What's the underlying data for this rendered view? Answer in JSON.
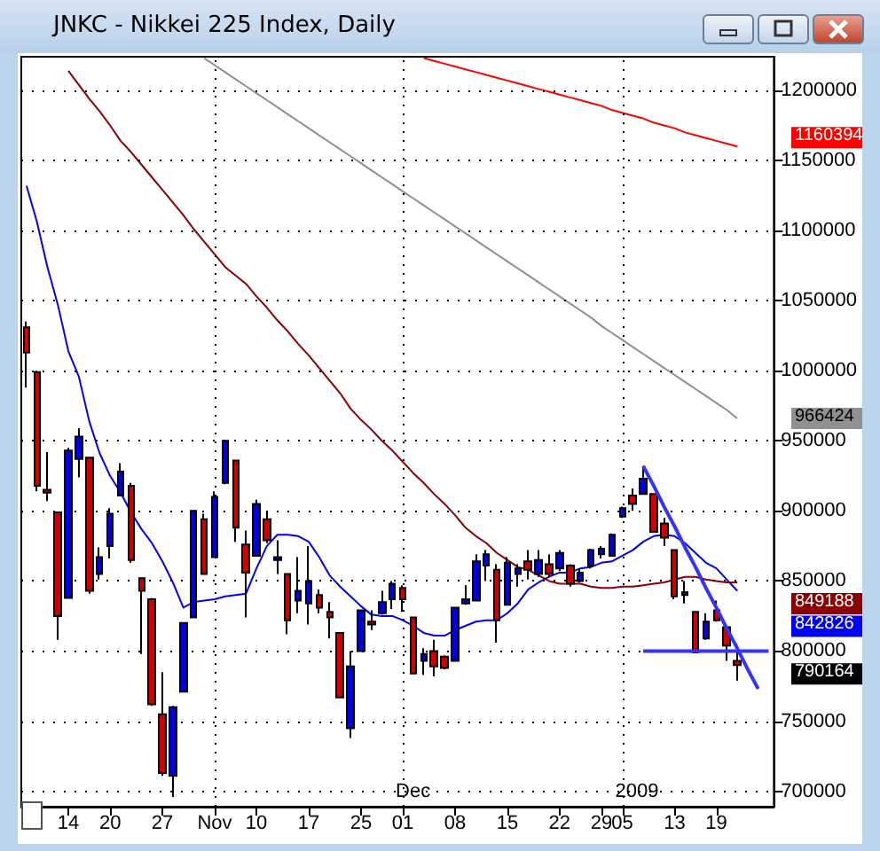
{
  "chart_data": {
    "type": "candlestick",
    "title": "JNKC - Nikkei 225 Index, Daily",
    "categories": [
      null,
      null,
      null,
      null,
      "14",
      null,
      null,
      null,
      "20",
      null,
      null,
      null,
      null,
      "27",
      null,
      null,
      null,
      null,
      "Nov",
      null,
      null,
      null,
      "10",
      null,
      null,
      null,
      null,
      "17",
      null,
      null,
      null,
      null,
      "25",
      null,
      null,
      null,
      "01",
      null,
      null,
      null,
      null,
      "08",
      null,
      null,
      null,
      null,
      "15",
      null,
      null,
      null,
      null,
      "22",
      null,
      null,
      null,
      "29",
      null,
      "05",
      null,
      null,
      null,
      null,
      "13",
      null,
      null,
      null,
      "19",
      null,
      null,
      null,
      null,
      null
    ],
    "ohlc": [
      [
        1031000,
        1035000,
        988000,
        1013000
      ],
      [
        999000,
        1000000,
        914000,
        918000
      ],
      [
        915000,
        942000,
        907000,
        913000
      ],
      [
        899000,
        899000,
        808000,
        825000
      ],
      [
        838000,
        945000,
        838000,
        943000
      ],
      [
        937000,
        959000,
        924000,
        953000
      ],
      [
        938000,
        938000,
        841000,
        843000
      ],
      [
        855000,
        874000,
        851000,
        867000
      ],
      [
        875000,
        902000,
        866000,
        898000
      ],
      [
        911000,
        934000,
        911000,
        928000
      ],
      [
        918000,
        920000,
        863000,
        865000
      ],
      [
        852000,
        852000,
        798000,
        843000
      ],
      [
        837000,
        838000,
        761000,
        762000
      ],
      [
        755000,
        785000,
        711000,
        713000
      ],
      [
        711000,
        761000,
        696000,
        760000
      ],
      [
        771000,
        820000,
        771000,
        820000
      ],
      [
        824000,
        900000,
        824000,
        900000
      ],
      [
        894000,
        898000,
        855000,
        855000
      ],
      [
        867000,
        914000,
        867000,
        910000
      ],
      [
        920000,
        950000,
        919000,
        950000
      ],
      [
        936000,
        936000,
        878000,
        888000
      ],
      [
        876000,
        886000,
        824000,
        856000
      ],
      [
        868000,
        908000,
        868000,
        905000
      ],
      [
        894000,
        900000,
        877000,
        879000
      ],
      [
        865000,
        879000,
        855000,
        867000
      ],
      [
        855000,
        855000,
        812000,
        822000
      ],
      [
        836000,
        867000,
        827000,
        843000
      ],
      [
        834000,
        875000,
        819000,
        850000
      ],
      [
        840000,
        844000,
        827000,
        831000
      ],
      [
        828000,
        835000,
        809000,
        824000
      ],
      [
        813000,
        813000,
        767000,
        767000
      ],
      [
        745000,
        800000,
        738000,
        789000
      ],
      [
        800000,
        829000,
        800000,
        829000
      ],
      [
        821000,
        829000,
        815000,
        819000
      ],
      [
        827000,
        843000,
        826000,
        835000
      ],
      [
        837000,
        850000,
        830000,
        848000
      ],
      [
        845000,
        847000,
        828000,
        837000
      ],
      [
        824000,
        824000,
        784000,
        784000
      ],
      [
        793000,
        802000,
        783000,
        798000
      ],
      [
        800000,
        808000,
        782000,
        789000
      ],
      [
        796000,
        797000,
        787000,
        788000
      ],
      [
        793000,
        831000,
        793000,
        831000
      ],
      [
        834000,
        847000,
        833000,
        837000
      ],
      [
        836000,
        869000,
        836000,
        864000
      ],
      [
        861000,
        872000,
        850000,
        869000
      ],
      [
        858000,
        862000,
        806000,
        822000
      ],
      [
        833000,
        867000,
        833000,
        863000
      ],
      [
        855000,
        862000,
        846000,
        859000
      ],
      [
        864000,
        872000,
        851000,
        858000
      ],
      [
        855000,
        872000,
        853000,
        865000
      ],
      [
        862000,
        869000,
        853000,
        855000
      ],
      [
        859000,
        872000,
        857000,
        870000
      ],
      [
        861000,
        862000,
        846000,
        848000
      ],
      [
        850000,
        859000,
        849000,
        856000
      ],
      [
        861000,
        873000,
        859000,
        872000
      ],
      [
        869000,
        875000,
        866000,
        873000
      ],
      [
        868000,
        884000,
        868000,
        883000
      ],
      [
        896000,
        903000,
        895000,
        902000
      ],
      [
        911000,
        916000,
        900000,
        905000
      ],
      [
        912000,
        932000,
        912000,
        923000
      ],
      [
        912000,
        912000,
        885000,
        885000
      ],
      [
        891000,
        895000,
        875000,
        881000
      ],
      [
        872000,
        872000,
        837000,
        839000
      ],
      [
        840000,
        850000,
        834000,
        842000
      ],
      [
        828000,
        828000,
        799000,
        799000
      ],
      [
        809000,
        827000,
        808000,
        821000
      ],
      [
        829000,
        836000,
        821000,
        822000
      ],
      [
        817000,
        817000,
        793000,
        804000
      ],
      [
        793000,
        799000,
        779000,
        790000
      ],
      null,
      null,
      null
    ],
    "colors": [
      "#d00000",
      "#d00000",
      "#d00000",
      "#d00000",
      "#0000e0",
      "#0000e0",
      "#d00000",
      "#0000e0",
      "#0000e0",
      "#0000e0",
      "#d00000",
      "#d00000",
      "#d00000",
      "#d00000",
      "#0000e0",
      "#0000e0",
      "#0000e0",
      "#d00000",
      "#0000e0",
      "#0000e0",
      "#d00000",
      "#d00000",
      "#0000e0",
      "#d00000",
      "#0000e0",
      "#d00000",
      "#0000e0",
      "#0000e0",
      "#d00000",
      "#d00000",
      "#d00000",
      "#0000e0",
      "#0000e0",
      "#d00000",
      "#0000e0",
      "#0000e0",
      "#d00000",
      "#d00000",
      "#0000e0",
      "#d00000",
      "#d00000",
      "#0000e0",
      "#0000e0",
      "#0000e0",
      "#0000e0",
      "#d00000",
      "#0000e0",
      "#0000e0",
      "#d00000",
      "#0000e0",
      "#d00000",
      "#0000e0",
      "#d00000",
      "#0000e0",
      "#0000e0",
      "#0000e0",
      "#0000e0",
      "#0000e0",
      "#d00000",
      "#0000e0",
      "#d00000",
      "#d00000",
      "#d00000",
      "#0000e0",
      "#d00000",
      "#0000e0",
      "#d00000",
      "#d00000",
      "#d00000",
      null,
      null,
      null
    ],
    "series": [
      {
        "type": "line",
        "color": "#0000ff",
        "values": [
          1132000,
          1106000,
          1074000,
          1047000,
          1014000,
          996000,
          964000,
          941000,
          925000,
          913000,
          899000,
          887000,
          877000,
          864000,
          849000,
          831000,
          835000,
          836000,
          837000,
          839000,
          840000,
          841000,
          859000,
          875000,
          883000,
          883000,
          882000,
          878000,
          867000,
          854000,
          846000,
          839000,
          832000,
          826000,
          825000,
          825000,
          822000,
          818000,
          813000,
          811000,
          811000,
          815000,
          818000,
          821000,
          822000,
          822000,
          827000,
          834000,
          844000,
          849000,
          853000,
          856000,
          856000,
          859000,
          860000,
          863000,
          864000,
          868000,
          872000,
          878000,
          882000,
          883000,
          882000,
          877000,
          870000,
          863000,
          859000,
          851000,
          843000,
          null,
          null,
          null
        ]
      },
      {
        "type": "line",
        "color": "#8b0000",
        "values": [
          null,
          null,
          null,
          null,
          1214000,
          1204000,
          1194000,
          1185000,
          1175000,
          1164000,
          1156000,
          1147000,
          1138000,
          1129000,
          1120000,
          1111000,
          1101000,
          1092000,
          1083000,
          1074000,
          1068000,
          1062000,
          1053000,
          1045000,
          1036000,
          1028000,
          1019000,
          1011000,
          1002000,
          993000,
          984000,
          973000,
          965000,
          958000,
          950000,
          943000,
          935000,
          927000,
          920000,
          912000,
          905000,
          897000,
          888000,
          882000,
          877000,
          870000,
          865000,
          860000,
          858000,
          854000,
          850000,
          848000,
          848000,
          848000,
          846000,
          845000,
          845000,
          846000,
          846000,
          847000,
          848000,
          849000,
          851000,
          853000,
          853000,
          851000,
          850000,
          849000,
          849000,
          null,
          null,
          null
        ]
      },
      {
        "type": "line",
        "color": "#909090",
        "values": [
          null,
          null,
          null,
          null,
          null,
          null,
          null,
          null,
          null,
          null,
          null,
          null,
          null,
          null,
          null,
          null,
          null,
          1223000,
          1218000,
          1213000,
          1208000,
          1203000,
          1198000,
          1193000,
          1188000,
          1183000,
          1178000,
          1173000,
          1168000,
          1163000,
          1158000,
          1153000,
          1148000,
          1143000,
          1138000,
          1133000,
          1128000,
          1123000,
          1118000,
          1113000,
          1108000,
          1103000,
          1098000,
          1093000,
          1088000,
          1083000,
          1078000,
          1073000,
          1068000,
          1063000,
          1058000,
          1053000,
          1048000,
          1043000,
          1038000,
          1032000,
          1027000,
          1022000,
          1017000,
          1012000,
          1007000,
          1002000,
          997000,
          992000,
          987000,
          982000,
          977000,
          972000,
          966000,
          null,
          null,
          null
        ]
      },
      {
        "type": "line",
        "color": "#ff0000",
        "values": [
          null,
          null,
          null,
          null,
          null,
          null,
          null,
          null,
          null,
          null,
          null,
          null,
          null,
          null,
          null,
          null,
          null,
          null,
          null,
          null,
          null,
          null,
          null,
          null,
          null,
          null,
          null,
          null,
          null,
          null,
          null,
          null,
          null,
          null,
          null,
          null,
          null,
          null,
          1223000,
          1221000,
          1219000,
          1217000,
          1215000,
          1213000,
          1211000,
          1209000,
          1207000,
          1205000,
          1203000,
          1201000,
          1199000,
          1197000,
          1195000,
          1193000,
          1191000,
          1189000,
          1186000,
          1184000,
          1182000,
          1180000,
          1177000,
          1175000,
          1173000,
          1170000,
          1168000,
          1166000,
          1164000,
          1162000,
          1160000,
          null,
          null,
          null
        ]
      },
      {
        "type": "line",
        "color": "#3333ff",
        "values": [
          null,
          null,
          null,
          null,
          null,
          null,
          null,
          null,
          null,
          null,
          null,
          null,
          null,
          null,
          null,
          null,
          null,
          null,
          null,
          null,
          null,
          null,
          null,
          null,
          null,
          null,
          null,
          null,
          null,
          null,
          null,
          null,
          null,
          null,
          null,
          null,
          null,
          null,
          null,
          null,
          null,
          null,
          null,
          null,
          null,
          null,
          null,
          null,
          null,
          null,
          null,
          null,
          null,
          null,
          null,
          null,
          null,
          null,
          null,
          932000,
          918000,
          903000,
          889000,
          874000,
          860000,
          845000,
          831000,
          816000,
          802000,
          787000,
          773000,
          null
        ]
      },
      {
        "type": "line",
        "color": "#3333ff",
        "values": [
          null,
          null,
          null,
          null,
          null,
          null,
          null,
          null,
          null,
          null,
          null,
          null,
          null,
          null,
          null,
          null,
          null,
          null,
          null,
          null,
          null,
          null,
          null,
          null,
          null,
          null,
          null,
          null,
          null,
          null,
          null,
          null,
          null,
          null,
          null,
          null,
          null,
          null,
          null,
          null,
          null,
          null,
          null,
          null,
          null,
          null,
          null,
          null,
          null,
          null,
          null,
          null,
          null,
          null,
          null,
          null,
          null,
          null,
          null,
          800000,
          800000,
          800000,
          800000,
          800000,
          800000,
          800000,
          800000,
          800000,
          800000,
          800000,
          800000,
          800000
        ]
      }
    ],
    "ylim": [
      689000,
      1224000
    ],
    "yticks": [
      700000,
      750000,
      800000,
      850000,
      900000,
      950000,
      1000000,
      1050000,
      1100000,
      1150000,
      1200000
    ],
    "grid": "y",
    "ref_lines": [
      {
        "axis": "x",
        "value": "Nov",
        "line_style": "dotted",
        "color": "#000000"
      },
      {
        "axis": "x",
        "value": "01",
        "line_style": "dotted",
        "color": "#000000"
      },
      {
        "axis": "x",
        "value": "05",
        "line_style": "dotted",
        "color": "#000000"
      }
    ],
    "annotations": [
      {
        "text": "Dec",
        "x": "01"
      },
      {
        "text": "2009",
        "x": "05"
      },
      "1160394",
      "966424",
      "849188",
      "842826",
      "790164"
    ]
  }
}
